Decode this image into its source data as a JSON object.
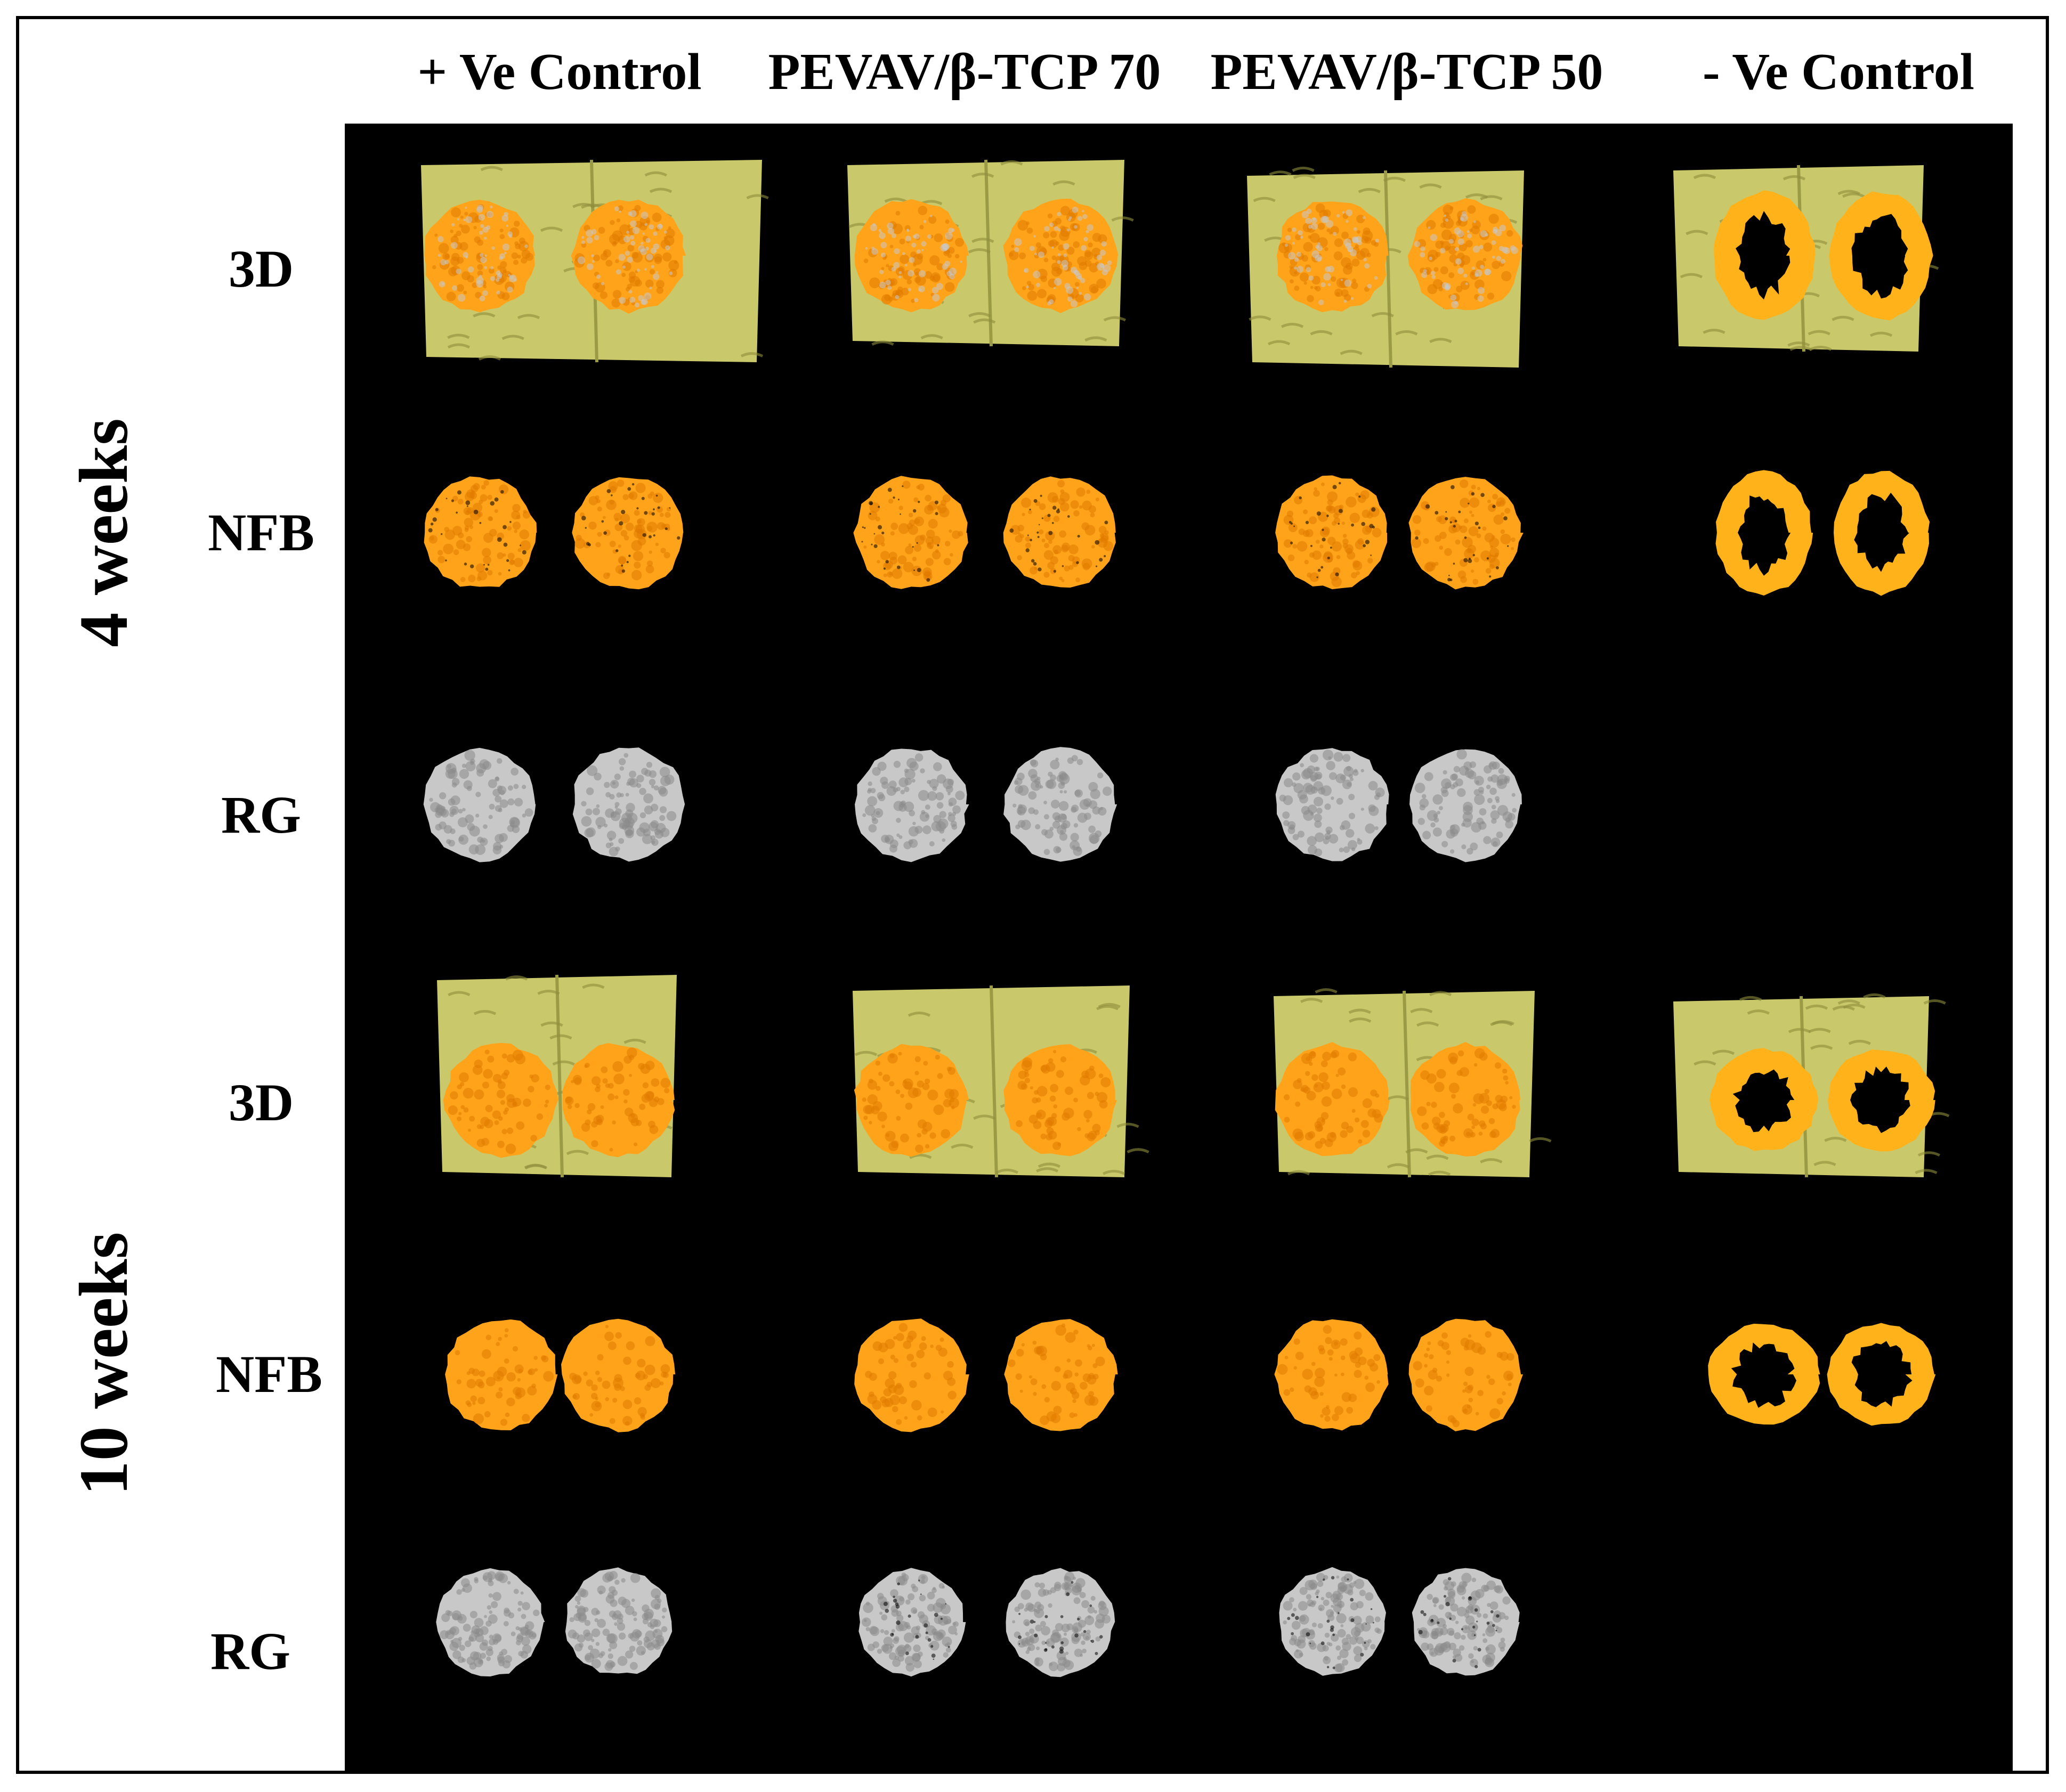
{
  "columns": [
    "+ Ve Control",
    "PEVAV/β-TCP 70",
    "PEVAV/β-TCP 50",
    "- Ve Control"
  ],
  "time_points": [
    {
      "label": "4 weeks",
      "rows": [
        "3D",
        "NFB",
        "RG"
      ]
    },
    {
      "label": "10 weeks",
      "rows": [
        "3D",
        "NFB",
        "RG"
      ]
    }
  ],
  "colors": {
    "background": "#000000",
    "host_bone": "#c9c86a",
    "new_bone": "#ffa31a",
    "residual_graft": "#c8c8c8"
  }
}
